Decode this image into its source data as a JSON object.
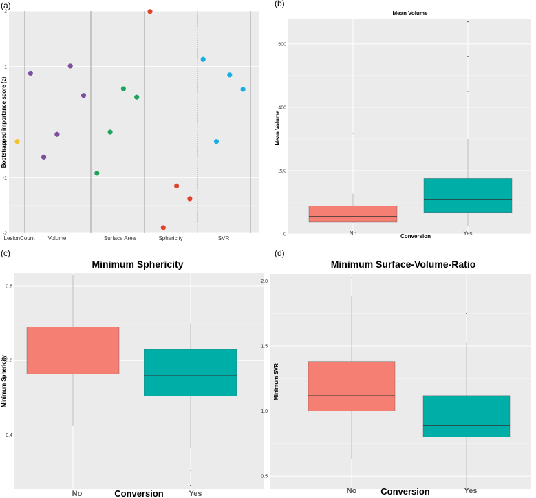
{
  "chart_data": [
    {
      "panel": "(a)",
      "type": "scatter",
      "title": "",
      "xlabel": "",
      "ylabel": "Bootstrapped importance score (z)",
      "ylim": [
        -2,
        2
      ],
      "yticks": [
        2,
        1,
        -1,
        -2
      ],
      "group_labels": [
        "LesionCount",
        "Volume",
        "Surface Area",
        "Sphericity",
        "SVR"
      ],
      "colors": {
        "LesionCount": "#f2c12e",
        "Volume": "#7d4fa0",
        "Surface Area": "#1ea35a",
        "Sphericity": "#e0432b",
        "SVR": "#1aaee0"
      },
      "points": [
        {
          "group": "LesionCount",
          "y": -0.35
        },
        {
          "group": "Volume",
          "y": 0.88
        },
        {
          "group": "Volume",
          "y": -0.63
        },
        {
          "group": "Volume",
          "y": -0.22
        },
        {
          "group": "Volume",
          "y": 1.01
        },
        {
          "group": "Volume",
          "y": 0.48
        },
        {
          "group": "Surface Area",
          "y": -0.92
        },
        {
          "group": "Surface Area",
          "y": -0.18
        },
        {
          "group": "Surface Area",
          "y": 0.6
        },
        {
          "group": "Surface Area",
          "y": 0.45
        },
        {
          "group": "Sphericity",
          "y": 1.99
        },
        {
          "group": "Sphericity",
          "y": -1.9
        },
        {
          "group": "Sphericity",
          "y": -1.15
        },
        {
          "group": "Sphericity",
          "y": -1.38
        },
        {
          "group": "SVR",
          "y": 1.13
        },
        {
          "group": "SVR",
          "y": -0.35
        },
        {
          "group": "SVR",
          "y": 0.85
        },
        {
          "group": "SVR",
          "y": 0.59
        }
      ]
    },
    {
      "panel": "(b)",
      "type": "box",
      "title": "Mean Volume",
      "xlabel": "Conversion",
      "ylabel": "Mean Volume",
      "categories": [
        "No",
        "Yes"
      ],
      "ylim": [
        0,
        680
      ],
      "yticks": [
        0,
        200,
        400,
        600
      ],
      "boxes": [
        {
          "category": "No",
          "color": "#f47f72",
          "whisker_low": 35,
          "q1": 37,
          "median": 55,
          "q3": 88,
          "whisker_high": 127,
          "outliers": [
            318
          ]
        },
        {
          "category": "Yes",
          "color": "#00aea8",
          "whisker_low": 25,
          "q1": 68,
          "median": 108,
          "q3": 175,
          "whisker_high": 300,
          "outliers": [
            450,
            560,
            670
          ]
        }
      ]
    },
    {
      "panel": "(c)",
      "type": "box",
      "title": "Minimum Sphericity",
      "xlabel": "Conversion",
      "ylabel": "Minimum Sphericity",
      "categories": [
        "No",
        "Yes"
      ],
      "ylim": [
        0.255,
        0.835
      ],
      "yticks": [
        0.4,
        0.6,
        0.8
      ],
      "boxes": [
        {
          "category": "No",
          "color": "#f47f72",
          "whisker_low": 0.425,
          "q1": 0.565,
          "median": 0.655,
          "q3": 0.69,
          "whisker_high": 0.83,
          "outliers": []
        },
        {
          "category": "Yes",
          "color": "#00aea8",
          "whisker_low": 0.365,
          "q1": 0.505,
          "median": 0.56,
          "q3": 0.63,
          "whisker_high": 0.7,
          "outliers": [
            0.305,
            0.265
          ]
        }
      ]
    },
    {
      "panel": "(d)",
      "type": "box",
      "title": "Minimum Surface-Volume-Ratio",
      "xlabel": "Conversion",
      "ylabel": "Minimum SVR",
      "categories": [
        "No",
        "Yes"
      ],
      "ylim": [
        0.4,
        2.05
      ],
      "yticks": [
        0.5,
        1.0,
        1.5,
        2.0
      ],
      "ytick_labels": [
        "0.5",
        "1.0",
        "1.5",
        "2.0"
      ],
      "boxes": [
        {
          "category": "No",
          "color": "#f47f72",
          "whisker_low": 0.63,
          "q1": 1.0,
          "median": 1.12,
          "q3": 1.38,
          "whisker_high": 1.88,
          "outliers": [
            2.03
          ]
        },
        {
          "category": "Yes",
          "color": "#00aea8",
          "whisker_low": 0.38,
          "q1": 0.8,
          "median": 0.89,
          "q3": 1.12,
          "whisker_high": 1.53,
          "outliers": [
            1.75
          ]
        }
      ]
    }
  ]
}
